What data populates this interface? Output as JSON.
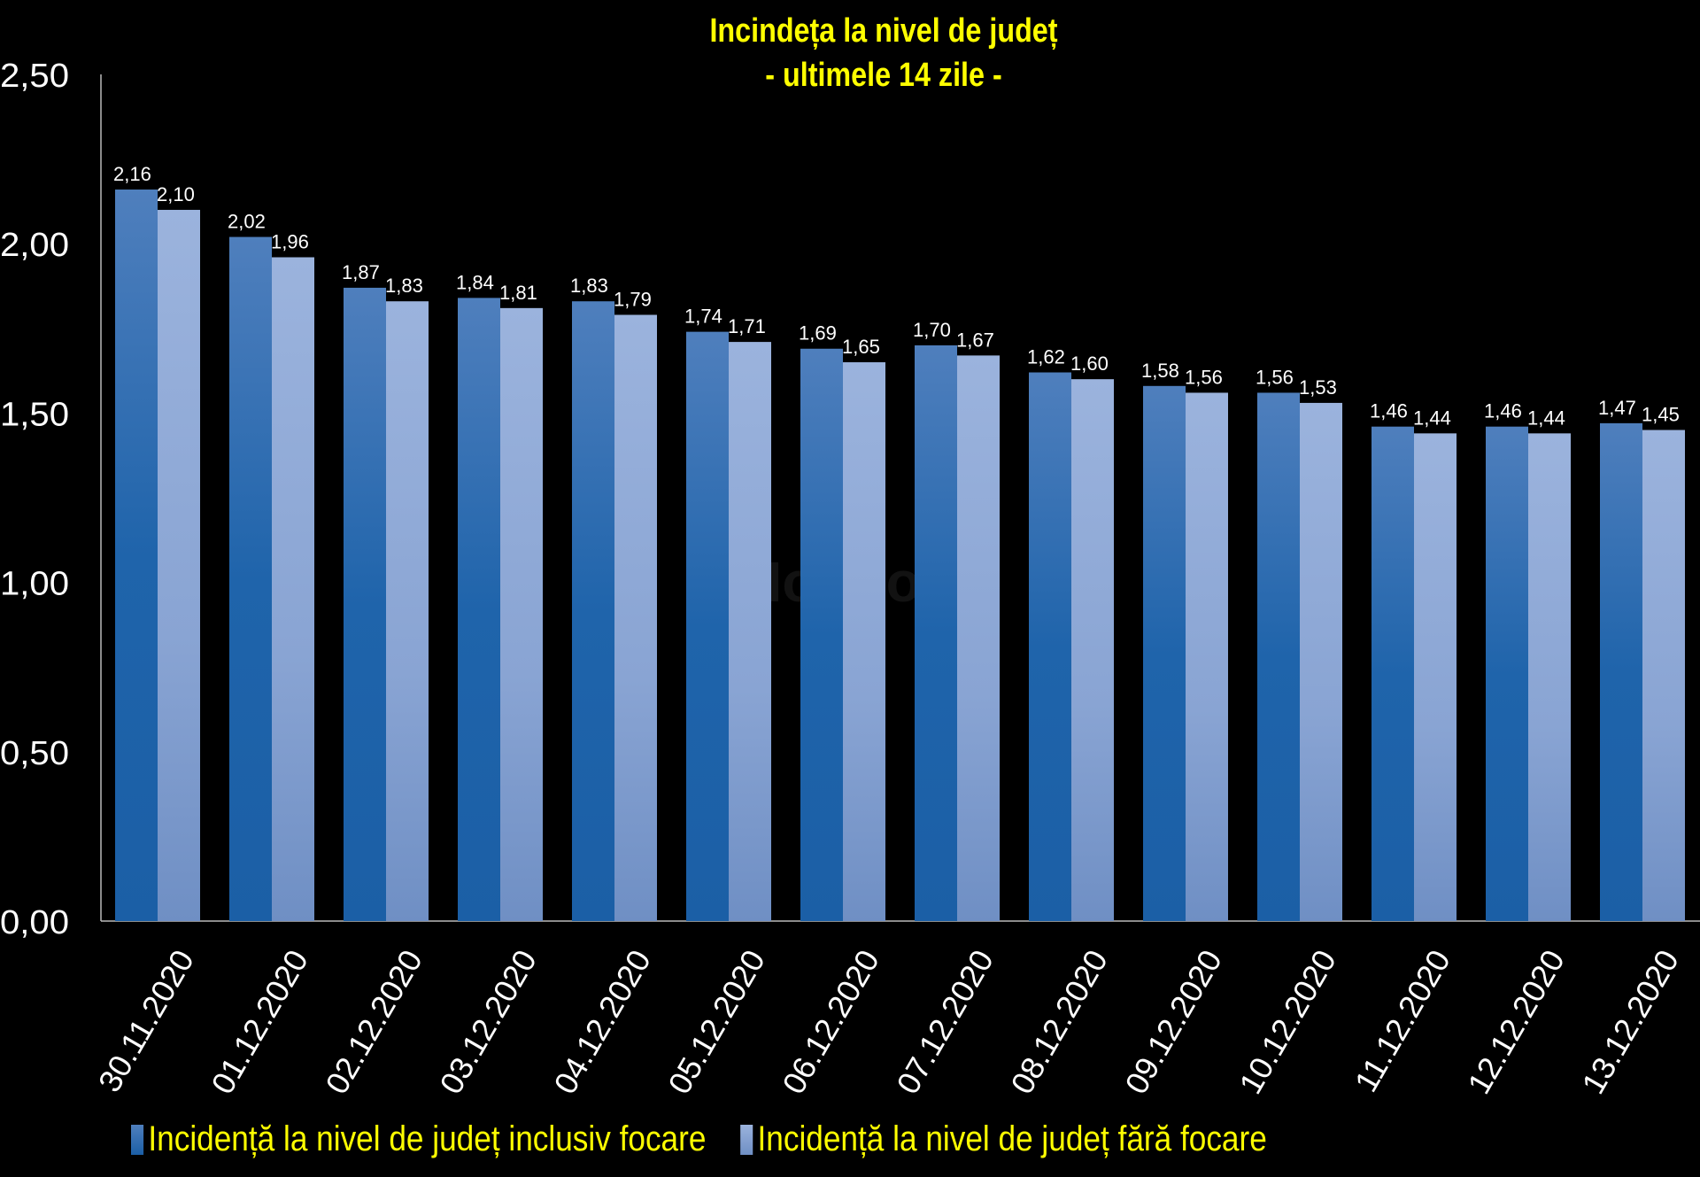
{
  "chart_data": {
    "type": "bar",
    "title": "Incindeța la nivel de județ",
    "subtitle": "- ultimele 14 zile -",
    "xlabel": "",
    "ylabel": "",
    "ylim": [
      0,
      2.5
    ],
    "yticks": [
      "0,00",
      "0,50",
      "1,00",
      "1,50",
      "2,00",
      "2,50"
    ],
    "ytick_values": [
      0,
      0.5,
      1,
      1.5,
      2,
      2.5
    ],
    "grid": false,
    "legend_position": "bottom",
    "categories": [
      "30.11.2020",
      "01.12.2020",
      "02.12.2020",
      "03.12.2020",
      "04.12.2020",
      "05.12.2020",
      "06.12.2020",
      "07.12.2020",
      "08.12.2020",
      "09.12.2020",
      "10.12.2020",
      "11.12.2020",
      "12.12.2020",
      "13.12.2020"
    ],
    "series": [
      {
        "name": "Incidență la nivel de județ inclusiv focare",
        "color": "#2f6fb5",
        "values": [
          2.16,
          2.02,
          1.87,
          1.84,
          1.83,
          1.74,
          1.69,
          1.7,
          1.62,
          1.58,
          1.56,
          1.46,
          1.46,
          1.47
        ]
      },
      {
        "name": "Incidență la nivel de județ fără focare",
        "color": "#8fa9d6",
        "values": [
          2.1,
          1.96,
          1.83,
          1.81,
          1.79,
          1.71,
          1.65,
          1.67,
          1.6,
          1.56,
          1.53,
          1.44,
          1.44,
          1.45
        ]
      }
    ]
  },
  "watermark": "Monitorul"
}
